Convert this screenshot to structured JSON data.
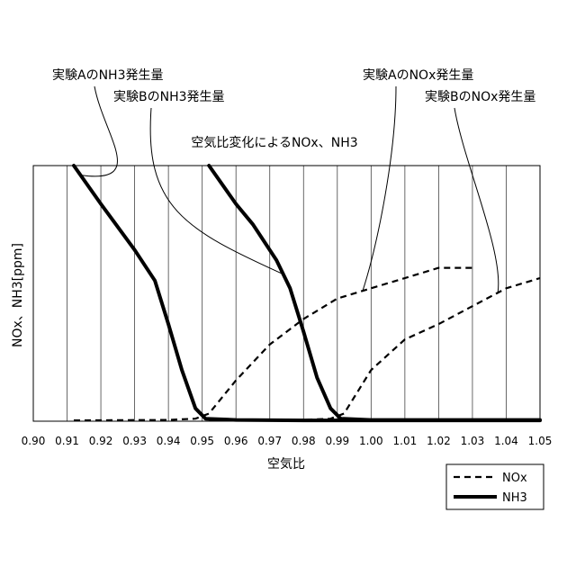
{
  "chart_data": {
    "type": "line",
    "title": "空気比変化によるNOx、NH3",
    "xlabel": "空気比",
    "ylabel": "NOx、NH3[ppm]",
    "xlim": [
      0.9,
      1.05
    ],
    "ylim": [
      0,
      100
    ],
    "x_ticks": [
      "0.90",
      "0.91",
      "0.92",
      "0.93",
      "0.94",
      "0.95",
      "0.96",
      "0.97",
      "0.98",
      "0.99",
      "1.00",
      "1.01",
      "1.02",
      "1.03",
      "1.04",
      "1.05"
    ],
    "grid": "vertical",
    "legend_position": "bottom-right",
    "legend": [
      {
        "label": "NOx",
        "style": "dashed"
      },
      {
        "label": "NH3",
        "style": "solid"
      }
    ],
    "series": [
      {
        "name": "実験AのNH3発生量",
        "kind": "NH3",
        "style": "solid",
        "x": [
          0.912,
          0.92,
          0.93,
          0.936,
          0.94,
          0.944,
          0.948,
          0.951,
          0.96,
          0.98,
          1.05
        ],
        "y": [
          100,
          85,
          67,
          55,
          38,
          20,
          5,
          1,
          0.5,
          0.3,
          0.3
        ]
      },
      {
        "name": "実験BのNH3発生量",
        "kind": "NH3",
        "style": "solid",
        "x": [
          0.952,
          0.96,
          0.965,
          0.972,
          0.976,
          0.98,
          0.984,
          0.988,
          0.991,
          1.0,
          1.05
        ],
        "y": [
          100,
          85,
          77,
          63,
          52,
          35,
          17,
          5,
          1,
          0.5,
          0.5
        ]
      },
      {
        "name": "実験AのNOx発生量",
        "kind": "NOx",
        "style": "dashed",
        "x": [
          0.912,
          0.94,
          0.948,
          0.952,
          0.96,
          0.97,
          0.98,
          0.99,
          1.0,
          1.01,
          1.02,
          1.03
        ],
        "y": [
          0.3,
          0.5,
          1,
          3,
          16,
          30,
          40,
          48,
          52,
          56,
          60,
          60
        ]
      },
      {
        "name": "実験BのNOx発生量",
        "kind": "NOx",
        "style": "dashed",
        "x": [
          0.952,
          0.98,
          0.988,
          0.992,
          1.0,
          1.01,
          1.02,
          1.03,
          1.04,
          1.05
        ],
        "y": [
          0.3,
          0.5,
          1,
          3,
          20,
          32,
          38,
          45,
          52,
          56
        ]
      }
    ]
  }
}
